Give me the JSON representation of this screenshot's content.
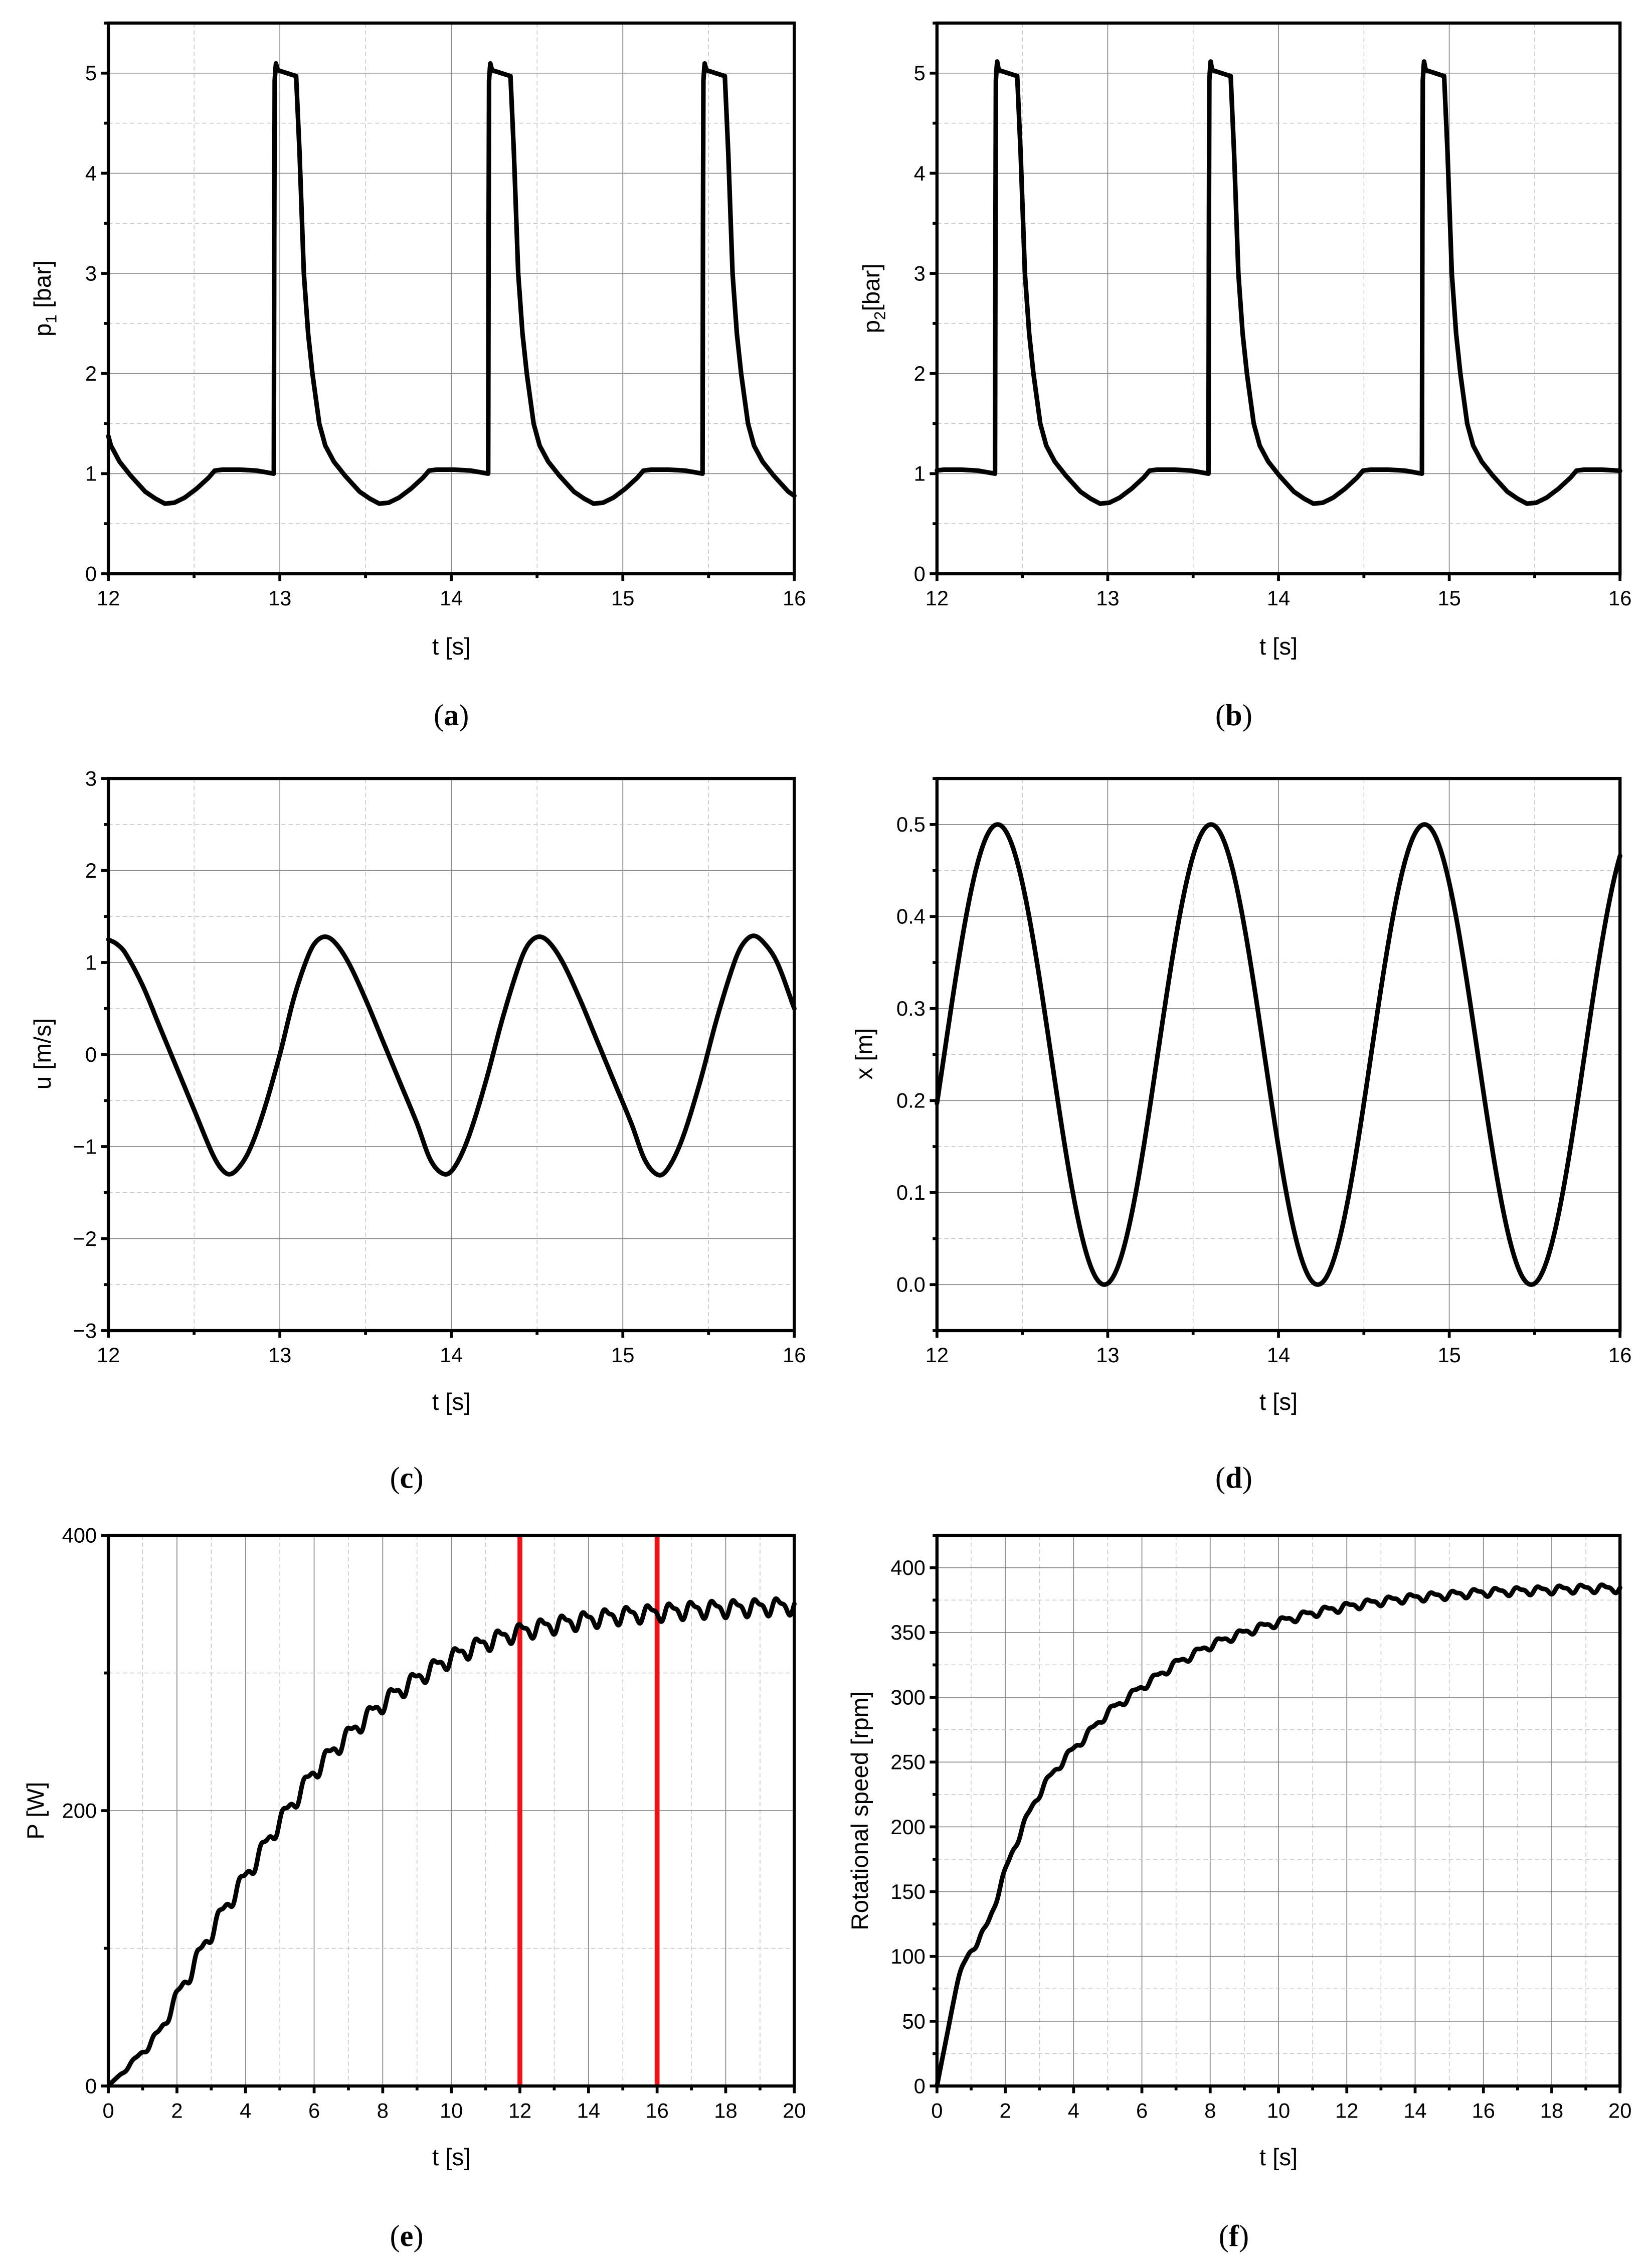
{
  "figure": {
    "panels": [
      {
        "id": "a",
        "caption_label": "a",
        "ylabel_main": "p",
        "ylabel_sub": "1",
        "ylabel_unit": " [bar]",
        "xlabel": "t [s]"
      },
      {
        "id": "b",
        "caption_label": "b",
        "ylabel_main": "p",
        "ylabel_sub": "2",
        "ylabel_unit": "[bar]",
        "xlabel": "t [s]"
      },
      {
        "id": "c",
        "caption_label": "c",
        "ylabel_main": "u [m/s]",
        "ylabel_sub": "",
        "ylabel_unit": "",
        "xlabel": "t [s]"
      },
      {
        "id": "d",
        "caption_label": "d",
        "ylabel_main": "x [m]",
        "ylabel_sub": "",
        "ylabel_unit": "",
        "xlabel": "t [s]"
      },
      {
        "id": "e",
        "caption_label": "e",
        "ylabel_main": "P [W]",
        "ylabel_sub": "",
        "ylabel_unit": "",
        "xlabel": "t [s]"
      },
      {
        "id": "f",
        "caption_label": "f",
        "ylabel_main": "Rotational speed [rpm]",
        "ylabel_sub": "",
        "ylabel_unit": "",
        "xlabel": "t [s]"
      }
    ]
  },
  "chart_data": [
    {
      "panel": "a",
      "type": "line",
      "title": "",
      "xlabel": "t [s]",
      "ylabel": "p1 [bar]",
      "xlim": [
        12,
        16
      ],
      "ylim": [
        0,
        5.5
      ],
      "grid": true,
      "xticks": [
        12,
        13,
        14,
        15,
        16
      ],
      "xminor": 0.5,
      "yticks": [
        0,
        1,
        2,
        3,
        4,
        5
      ],
      "yminor": 0.5,
      "series": [
        {
          "name": "p1",
          "color": "#000000",
          "periodic": {
            "period": 1.25,
            "first_rise": 11.715,
            "cycle_points": [
              [
                0,
                1.0
              ],
              [
                0.004,
                4.9
              ],
              [
                0.012,
                5.1
              ],
              [
                0.022,
                5.03
              ],
              [
                0.13,
                4.97
              ],
              [
                0.15,
                4.2
              ],
              [
                0.175,
                3.0
              ],
              [
                0.2,
                2.4
              ],
              [
                0.225,
                2.0
              ],
              [
                0.265,
                1.5
              ],
              [
                0.3,
                1.28
              ],
              [
                0.35,
                1.12
              ],
              [
                0.415,
                0.98
              ],
              [
                0.5,
                0.82
              ],
              [
                0.56,
                0.75
              ],
              [
                0.615,
                0.7
              ],
              [
                0.67,
                0.71
              ],
              [
                0.73,
                0.76
              ],
              [
                0.8,
                0.85
              ],
              [
                0.87,
                0.96
              ],
              [
                0.905,
                1.03
              ],
              [
                0.95,
                1.04
              ],
              [
                1.05,
                1.04
              ],
              [
                1.15,
                1.03
              ],
              [
                1.249,
                1.0
              ]
            ]
          },
          "peak_times": [
            12.98,
            14.23,
            15.48
          ],
          "min_times": [
            12.33,
            13.6,
            14.85
          ]
        }
      ]
    },
    {
      "panel": "b",
      "type": "line",
      "title": "",
      "xlabel": "t [s]",
      "ylabel": "p2 [bar]",
      "xlim": [
        12,
        16
      ],
      "ylim": [
        0,
        5.5
      ],
      "grid": true,
      "xticks": [
        12,
        13,
        14,
        15,
        16
      ],
      "xminor": 0.5,
      "yticks": [
        0,
        1,
        2,
        3,
        4,
        5
      ],
      "yminor": 0.5,
      "series": [
        {
          "name": "p2",
          "color": "#000000",
          "periodic": {
            "period": 1.25,
            "first_rise": 11.09,
            "cycle_points": [
              [
                0,
                1.0
              ],
              [
                0.004,
                4.9
              ],
              [
                0.012,
                5.12
              ],
              [
                0.022,
                5.03
              ],
              [
                0.13,
                4.97
              ],
              [
                0.15,
                4.2
              ],
              [
                0.175,
                3.0
              ],
              [
                0.2,
                2.4
              ],
              [
                0.225,
                2.0
              ],
              [
                0.265,
                1.5
              ],
              [
                0.3,
                1.28
              ],
              [
                0.35,
                1.12
              ],
              [
                0.415,
                0.98
              ],
              [
                0.5,
                0.82
              ],
              [
                0.56,
                0.75
              ],
              [
                0.615,
                0.7
              ],
              [
                0.67,
                0.71
              ],
              [
                0.73,
                0.76
              ],
              [
                0.8,
                0.85
              ],
              [
                0.87,
                0.96
              ],
              [
                0.905,
                1.03
              ],
              [
                0.95,
                1.04
              ],
              [
                1.05,
                1.04
              ],
              [
                1.15,
                1.03
              ],
              [
                1.249,
                1.0
              ]
            ]
          },
          "peak_times": [
            12.35,
            13.6,
            14.85
          ],
          "min_times": [
            12.97,
            14.22,
            15.47
          ]
        }
      ]
    },
    {
      "panel": "c",
      "type": "line",
      "title": "",
      "xlabel": "t [s]",
      "ylabel": "u [m/s]",
      "xlim": [
        12,
        16
      ],
      "ylim": [
        -3,
        3
      ],
      "grid": true,
      "xticks": [
        12,
        13,
        14,
        15,
        16
      ],
      "xminor": 0.5,
      "yticks": [
        -3,
        -2,
        -1,
        0,
        1,
        2,
        3
      ],
      "yminor": 0.5,
      "series": [
        {
          "name": "u",
          "color": "#000000",
          "points": [
            [
              12.0,
              1.25
            ],
            [
              12.05,
              1.2
            ],
            [
              12.1,
              1.1
            ],
            [
              12.2,
              0.75
            ],
            [
              12.3,
              0.3
            ],
            [
              12.4,
              -0.15
            ],
            [
              12.5,
              -0.6
            ],
            [
              12.6,
              -1.05
            ],
            [
              12.65,
              -1.22
            ],
            [
              12.7,
              -1.3
            ],
            [
              12.75,
              -1.25
            ],
            [
              12.82,
              -1.05
            ],
            [
              12.9,
              -0.65
            ],
            [
              13.0,
              0.0
            ],
            [
              13.08,
              0.6
            ],
            [
              13.15,
              1.0
            ],
            [
              13.2,
              1.2
            ],
            [
              13.26,
              1.28
            ],
            [
              13.32,
              1.22
            ],
            [
              13.4,
              1.0
            ],
            [
              13.5,
              0.6
            ],
            [
              13.6,
              0.15
            ],
            [
              13.7,
              -0.3
            ],
            [
              13.8,
              -0.75
            ],
            [
              13.88,
              -1.15
            ],
            [
              13.96,
              -1.3
            ],
            [
              14.02,
              -1.22
            ],
            [
              14.1,
              -0.9
            ],
            [
              14.2,
              -0.3
            ],
            [
              14.3,
              0.4
            ],
            [
              14.4,
              1.0
            ],
            [
              14.45,
              1.2
            ],
            [
              14.51,
              1.28
            ],
            [
              14.57,
              1.22
            ],
            [
              14.65,
              1.0
            ],
            [
              14.75,
              0.6
            ],
            [
              14.85,
              0.15
            ],
            [
              14.95,
              -0.3
            ],
            [
              15.05,
              -0.75
            ],
            [
              15.13,
              -1.15
            ],
            [
              15.21,
              -1.31
            ],
            [
              15.27,
              -1.22
            ],
            [
              15.35,
              -0.9
            ],
            [
              15.45,
              -0.3
            ],
            [
              15.55,
              0.4
            ],
            [
              15.65,
              1.0
            ],
            [
              15.7,
              1.2
            ],
            [
              15.76,
              1.29
            ],
            [
              15.82,
              1.22
            ],
            [
              15.9,
              1.0
            ],
            [
              16.0,
              0.5
            ]
          ]
        }
      ]
    },
    {
      "panel": "d",
      "type": "line",
      "title": "",
      "xlabel": "t [s]",
      "ylabel": "x [m]",
      "xlim": [
        12,
        16
      ],
      "ylim": [
        -0.05,
        0.55
      ],
      "grid": true,
      "xticks": [
        12,
        13,
        14,
        15,
        16
      ],
      "xminor": 0.5,
      "yticks": [
        0.0,
        0.1,
        0.2,
        0.3,
        0.4,
        0.5
      ],
      "yminor": 0.05,
      "ytick_labels": [
        "0.0",
        "0.1",
        "0.2",
        "0.3",
        "0.4",
        "0.5"
      ],
      "series": [
        {
          "name": "x",
          "color": "#000000",
          "sinusoid": {
            "mean": 0.25,
            "amplitude": 0.25,
            "period": 1.25,
            "peak_time": 12.355
          },
          "peak_times": [
            12.35,
            13.6,
            14.85
          ],
          "min_times": [
            12.98,
            14.23,
            15.48
          ]
        }
      ]
    },
    {
      "panel": "e",
      "type": "line",
      "title": "",
      "xlabel": "t [s]",
      "ylabel": "P [W]",
      "xlim": [
        0,
        20
      ],
      "ylim": [
        0,
        400
      ],
      "grid": true,
      "xticks": [
        0,
        2,
        4,
        6,
        8,
        10,
        12,
        14,
        16,
        18,
        20
      ],
      "xminor": 1,
      "yticks": [
        0,
        200,
        400
      ],
      "yminor": 100,
      "vertical_markers": [
        {
          "x": 12,
          "color": "#e8161b"
        },
        {
          "x": 16,
          "color": "#e8161b"
        }
      ],
      "series": [
        {
          "name": "P",
          "color": "#000000",
          "trend": [
            [
              0,
              0
            ],
            [
              0.5,
              12
            ],
            [
              1,
              25
            ],
            [
              1.5,
              40
            ],
            [
              2,
              65
            ],
            [
              2.5,
              88
            ],
            [
              3,
              112
            ],
            [
              3.5,
              133
            ],
            [
              4,
              152
            ],
            [
              4.5,
              172
            ],
            [
              5,
              192
            ],
            [
              5.5,
              210
            ],
            [
              6,
              228
            ],
            [
              7,
              255
            ],
            [
              8,
              278
            ],
            [
              9,
              296
            ],
            [
              10,
              311
            ],
            [
              11,
              322
            ],
            [
              12,
              330
            ],
            [
              13,
              335
            ],
            [
              14,
              339
            ],
            [
              15,
              342
            ],
            [
              16,
              344
            ],
            [
              17,
              346
            ],
            [
              18,
              347
            ],
            [
              19,
              348
            ],
            [
              20,
              349
            ]
          ],
          "oscillation": {
            "period": 0.625,
            "amplitude": 7,
            "ramp_in": 2.5
          }
        }
      ]
    },
    {
      "panel": "f",
      "type": "line",
      "title": "",
      "xlabel": "t [s]",
      "ylabel": "Rotational speed [rpm]",
      "xlim": [
        0,
        20
      ],
      "ylim": [
        0,
        425
      ],
      "grid": true,
      "xticks": [
        0,
        2,
        4,
        6,
        8,
        10,
        12,
        14,
        16,
        18,
        20
      ],
      "xminor": 1,
      "yticks": [
        0,
        50,
        100,
        150,
        200,
        250,
        300,
        350,
        400
      ],
      "yminor": 25,
      "series": [
        {
          "name": "rotational speed",
          "color": "#000000",
          "trend": [
            [
              0,
              0
            ],
            [
              0.3,
              40
            ],
            [
              0.6,
              80
            ],
            [
              0.9,
              100
            ],
            [
              1.2,
              112
            ],
            [
              1.5,
              126
            ],
            [
              1.8,
              150
            ],
            [
              2.2,
              180
            ],
            [
              2.6,
              205
            ],
            [
              3,
              226
            ],
            [
              3.5,
              245
            ],
            [
              4,
              260
            ],
            [
              4.5,
              274
            ],
            [
              5,
              288
            ],
            [
              5.5,
              298
            ],
            [
              6,
              308
            ],
            [
              6.5,
              317
            ],
            [
              7,
              326
            ],
            [
              7.5,
              333
            ],
            [
              8,
              340
            ],
            [
              9,
              350
            ],
            [
              10,
              358
            ],
            [
              11,
              365
            ],
            [
              12,
              370
            ],
            [
              13,
              374
            ],
            [
              14,
              377
            ],
            [
              15,
              379
            ],
            [
              16,
              381
            ],
            [
              17,
              382
            ],
            [
              18,
              383
            ],
            [
              19,
              384
            ],
            [
              20,
              384
            ]
          ],
          "oscillation": {
            "period": 0.625,
            "amplitude": 3.5,
            "ramp_in": 1.5
          }
        }
      ]
    }
  ]
}
